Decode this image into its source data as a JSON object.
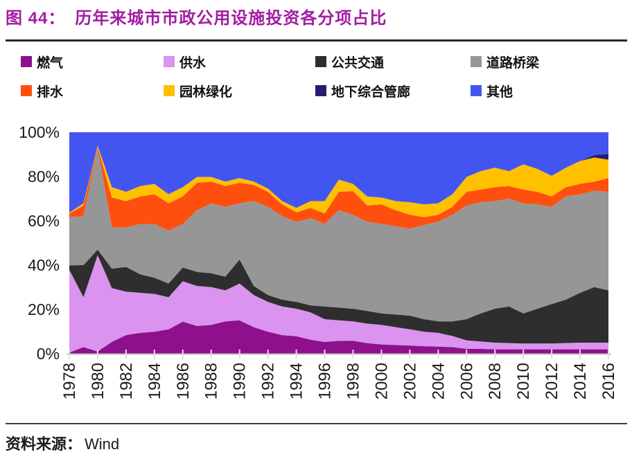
{
  "header": {
    "title_prefix": "图 44：",
    "title_text": "历年来城市市政公用设施投资各分项占比"
  },
  "footer": {
    "source_label": "资料来源：",
    "source_value": "Wind"
  },
  "colors": {
    "title": "#A21CA2",
    "divider": "#262626",
    "axis_line": "#BFBFBF",
    "tick": "#E0E0E0",
    "text": "#1a1a1a"
  },
  "chart_data": {
    "type": "area",
    "stacked": true,
    "title": "",
    "xlabel": "",
    "ylabel": "",
    "unit": "%",
    "ylim": [
      0,
      100
    ],
    "grid": false,
    "legend_position": "top",
    "y_tick_labels": [
      "0%",
      "20%",
      "40%",
      "60%",
      "80%",
      "100%"
    ],
    "x_tick_step": 2,
    "x_tick_labels": [
      "1978",
      "1980",
      "1982",
      "1984",
      "1986",
      "1988",
      "1990",
      "1992",
      "1994",
      "1996",
      "1998",
      "2000",
      "2002",
      "2004",
      "2006",
      "2008",
      "2010",
      "2012",
      "2014",
      "2016"
    ],
    "x": [
      1978,
      1979,
      1980,
      1981,
      1982,
      1983,
      1984,
      1985,
      1986,
      1987,
      1988,
      1989,
      1990,
      1991,
      1992,
      1993,
      1994,
      1995,
      1996,
      1997,
      1998,
      1999,
      2000,
      2001,
      2002,
      2003,
      2004,
      2005,
      2006,
      2007,
      2008,
      2009,
      2010,
      2011,
      2012,
      2013,
      2014,
      2015,
      2016
    ],
    "series": [
      {
        "name": "燃气",
        "color": "#8E108C",
        "values": [
          0.5,
          3,
          1,
          5.3,
          8.4,
          9.4,
          9.9,
          11,
          14.5,
          12.5,
          13,
          14.6,
          15.1,
          12,
          9.9,
          8.4,
          7.9,
          6.3,
          5.3,
          5.8,
          5.8,
          4.8,
          4.2,
          3.9,
          3.7,
          3.4,
          3.2,
          3,
          2.2,
          2.2,
          2,
          2,
          2,
          2,
          2,
          2,
          2,
          2,
          2
        ]
      },
      {
        "name": "供水",
        "color": "#DA93EE",
        "values": [
          37.4,
          22.5,
          43.5,
          24.3,
          19.6,
          18.1,
          17.1,
          14.5,
          18.2,
          18.1,
          17.1,
          14,
          16.6,
          14.5,
          13.5,
          12.9,
          12.4,
          12.4,
          10.3,
          9.3,
          8.8,
          8.8,
          8.8,
          8.1,
          7.3,
          6.5,
          6.2,
          5,
          3.8,
          3.3,
          3,
          2.8,
          2.6,
          2.6,
          2.6,
          2.8,
          3,
          3,
          3
        ]
      },
      {
        "name": "公共交通",
        "color": "#2E2E2E",
        "values": [
          2,
          14.5,
          2.5,
          8.8,
          11.2,
          8.3,
          7.3,
          6.2,
          6.2,
          6.3,
          6.2,
          6.2,
          10.8,
          4.1,
          3.1,
          3.1,
          3.1,
          3.1,
          5.7,
          5.7,
          5.7,
          5.7,
          5.2,
          5.7,
          6.2,
          5.7,
          5.2,
          6.6,
          9.6,
          12.7,
          15.3,
          16.5,
          13.6,
          15.7,
          17.8,
          19.6,
          22.5,
          25.1,
          23.6
        ]
      },
      {
        "name": "道路桥梁",
        "color": "#969696",
        "values": [
          21.8,
          22.2,
          46,
          18.6,
          17.8,
          22.8,
          24.3,
          23.8,
          19.7,
          27.9,
          31.6,
          31.5,
          25.4,
          38.3,
          39.8,
          37.8,
          36.2,
          39.4,
          37.3,
          44,
          42.4,
          40.3,
          40.4,
          39.9,
          39.3,
          42.5,
          45,
          48.1,
          51.3,
          50.2,
          48.6,
          48.7,
          49.7,
          47.1,
          43.9,
          46.6,
          44.5,
          43.5,
          44.5
        ]
      },
      {
        "name": "排水",
        "color": "#FF4F0F",
        "values": [
          1.5,
          4.7,
          0.5,
          13.5,
          11.9,
          12.4,
          13.4,
          12.4,
          12.4,
          12.4,
          9.8,
          9.4,
          9.3,
          7.3,
          6.8,
          5.2,
          4.2,
          4.6,
          4.7,
          8.3,
          10.7,
          7.3,
          8.8,
          7.2,
          6.2,
          3.6,
          3.1,
          3.6,
          6.2,
          5.7,
          6.3,
          5.7,
          6.2,
          5.7,
          4.7,
          4.2,
          4.7,
          4.1,
          6.2
        ]
      },
      {
        "name": "园林绿化",
        "color": "#FFC000",
        "values": [
          0.5,
          1,
          0.5,
          4.7,
          4.2,
          4.7,
          4.7,
          4.1,
          4.2,
          2.6,
          2.1,
          2,
          2.1,
          1.5,
          1.5,
          1.5,
          2,
          3.1,
          5.6,
          5.5,
          3.3,
          4.1,
          3.1,
          4.1,
          5.7,
          5.7,
          5.2,
          5.7,
          6.7,
          8.3,
          8.8,
          6.7,
          11.4,
          10.3,
          9.3,
          8.8,
          10.3,
          10.9,
          8.3
        ]
      },
      {
        "name": "地下综合管廊",
        "color": "#251D6E",
        "values": [
          0,
          0,
          0,
          0,
          0,
          0,
          0,
          0,
          0,
          0,
          0,
          0,
          0,
          0,
          0,
          0,
          0,
          0,
          0,
          0,
          0,
          0,
          0,
          0,
          0,
          0,
          0,
          0,
          0,
          0,
          0,
          0,
          0,
          0,
          0,
          0,
          0,
          1.1,
          2.6
        ]
      },
      {
        "name": "其他",
        "color": "#4355F0",
        "values": [
          36.3,
          32.1,
          6,
          24.8,
          26.9,
          24.3,
          23.3,
          28,
          24.8,
          20.2,
          20.2,
          22.3,
          20.7,
          22.3,
          25.4,
          31.1,
          34.2,
          31.1,
          31.1,
          21.4,
          23.3,
          29,
          29.5,
          31.1,
          31.6,
          32.6,
          32.1,
          28,
          20.2,
          17.6,
          16,
          17.6,
          14.5,
          16.6,
          19.7,
          16,
          13,
          10.3,
          9.8
        ]
      }
    ]
  }
}
